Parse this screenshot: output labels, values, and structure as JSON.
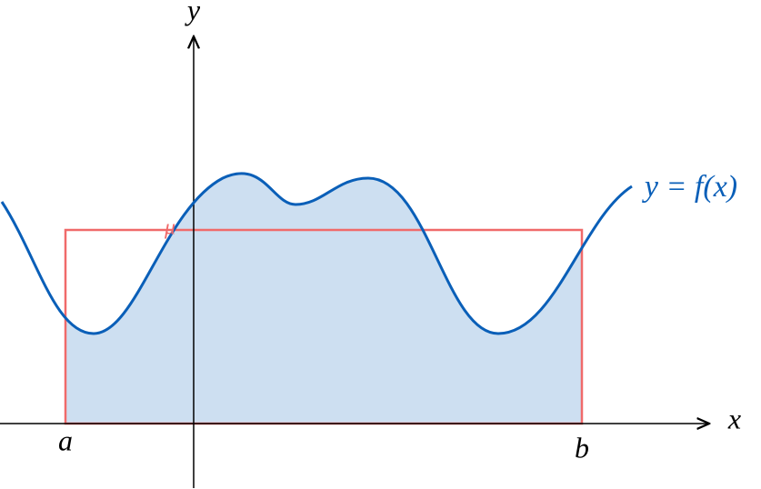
{
  "axes": {
    "x_label": "x",
    "y_label": "y"
  },
  "bounds": {
    "a": "a",
    "b": "b"
  },
  "curve": {
    "label": "y = f(x)"
  },
  "mean": {
    "label": "μ"
  }
}
